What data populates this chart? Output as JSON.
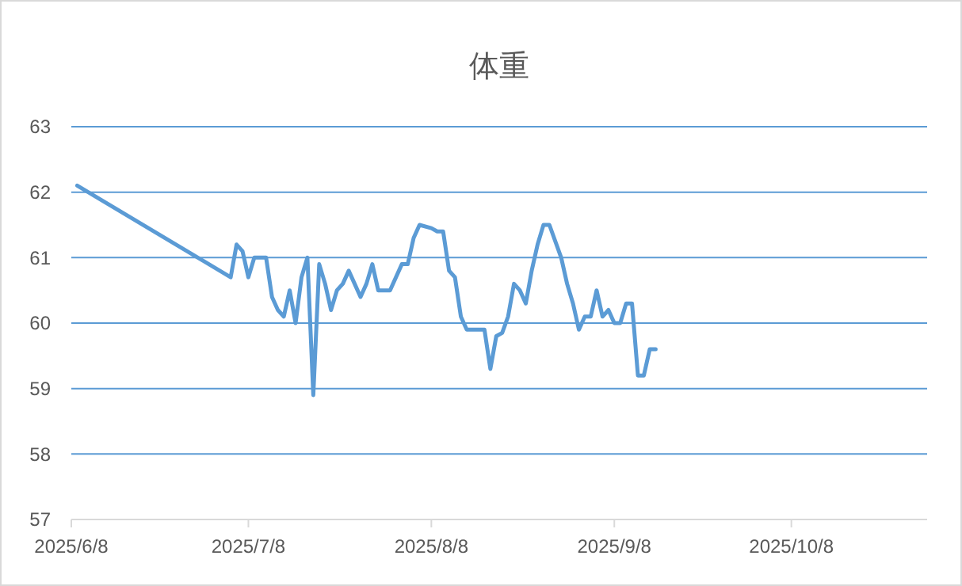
{
  "chart_data": {
    "type": "line",
    "title": "体重",
    "x": [
      "2025-06-09",
      "2025-07-05",
      "2025-07-06",
      "2025-07-07",
      "2025-07-08",
      "2025-07-09",
      "2025-07-10",
      "2025-07-11",
      "2025-07-12",
      "2025-07-13",
      "2025-07-14",
      "2025-07-15",
      "2025-07-16",
      "2025-07-17",
      "2025-07-18",
      "2025-07-19",
      "2025-07-20",
      "2025-07-21",
      "2025-07-22",
      "2025-07-23",
      "2025-07-24",
      "2025-07-25",
      "2025-07-26",
      "2025-07-27",
      "2025-07-28",
      "2025-07-29",
      "2025-07-30",
      "2025-07-31",
      "2025-08-01",
      "2025-08-03",
      "2025-08-04",
      "2025-08-05",
      "2025-08-06",
      "2025-08-08",
      "2025-08-09",
      "2025-08-10",
      "2025-08-11",
      "2025-08-12",
      "2025-08-13",
      "2025-08-14",
      "2025-08-15",
      "2025-08-17",
      "2025-08-18",
      "2025-08-19",
      "2025-08-20",
      "2025-08-21",
      "2025-08-22",
      "2025-08-23",
      "2025-08-24",
      "2025-08-25",
      "2025-08-26",
      "2025-08-27",
      "2025-08-28",
      "2025-08-30",
      "2025-08-31",
      "2025-09-01",
      "2025-09-02",
      "2025-09-03",
      "2025-09-04",
      "2025-09-05",
      "2025-09-06",
      "2025-09-07",
      "2025-09-08",
      "2025-09-09",
      "2025-09-10",
      "2025-09-11",
      "2025-09-12",
      "2025-09-13",
      "2025-09-14",
      "2025-09-15"
    ],
    "series": [
      {
        "color": "#5b9bd5",
        "values": [
          62.1,
          60.7,
          61.2,
          61.1,
          60.7,
          61.0,
          61.0,
          61.0,
          60.4,
          60.2,
          60.1,
          60.5,
          60.0,
          60.7,
          61.0,
          58.9,
          60.9,
          60.6,
          60.2,
          60.5,
          60.6,
          60.8,
          60.6,
          60.4,
          60.6,
          60.9,
          60.5,
          60.5,
          60.5,
          60.9,
          60.9,
          61.3,
          61.5,
          61.45,
          61.4,
          61.4,
          60.8,
          60.7,
          60.1,
          59.9,
          59.9,
          59.9,
          59.3,
          59.8,
          59.85,
          60.1,
          60.6,
          60.5,
          60.3,
          60.8,
          61.2,
          61.5,
          61.5,
          61.0,
          60.6,
          60.3,
          59.9,
          60.1,
          60.1,
          60.5,
          60.1,
          60.2,
          60.0,
          60.0,
          60.3,
          60.3,
          59.2,
          59.2,
          59.6,
          59.6
        ]
      }
    ],
    "xlim": [
      "2025-06-08",
      "2025-10-31"
    ],
    "xticks": [
      {
        "value": "2025-06-08",
        "label": "2025/6/8"
      },
      {
        "value": "2025-07-08",
        "label": "2025/7/8"
      },
      {
        "value": "2025-08-08",
        "label": "2025/8/8"
      },
      {
        "value": "2025-09-08",
        "label": "2025/9/8"
      },
      {
        "value": "2025-10-08",
        "label": "2025/10/8"
      }
    ],
    "ylim": [
      57,
      63
    ],
    "yticks": [
      57,
      58,
      59,
      60,
      61,
      62,
      63
    ],
    "grid": "y",
    "marker": "none",
    "line_style": "solid"
  }
}
